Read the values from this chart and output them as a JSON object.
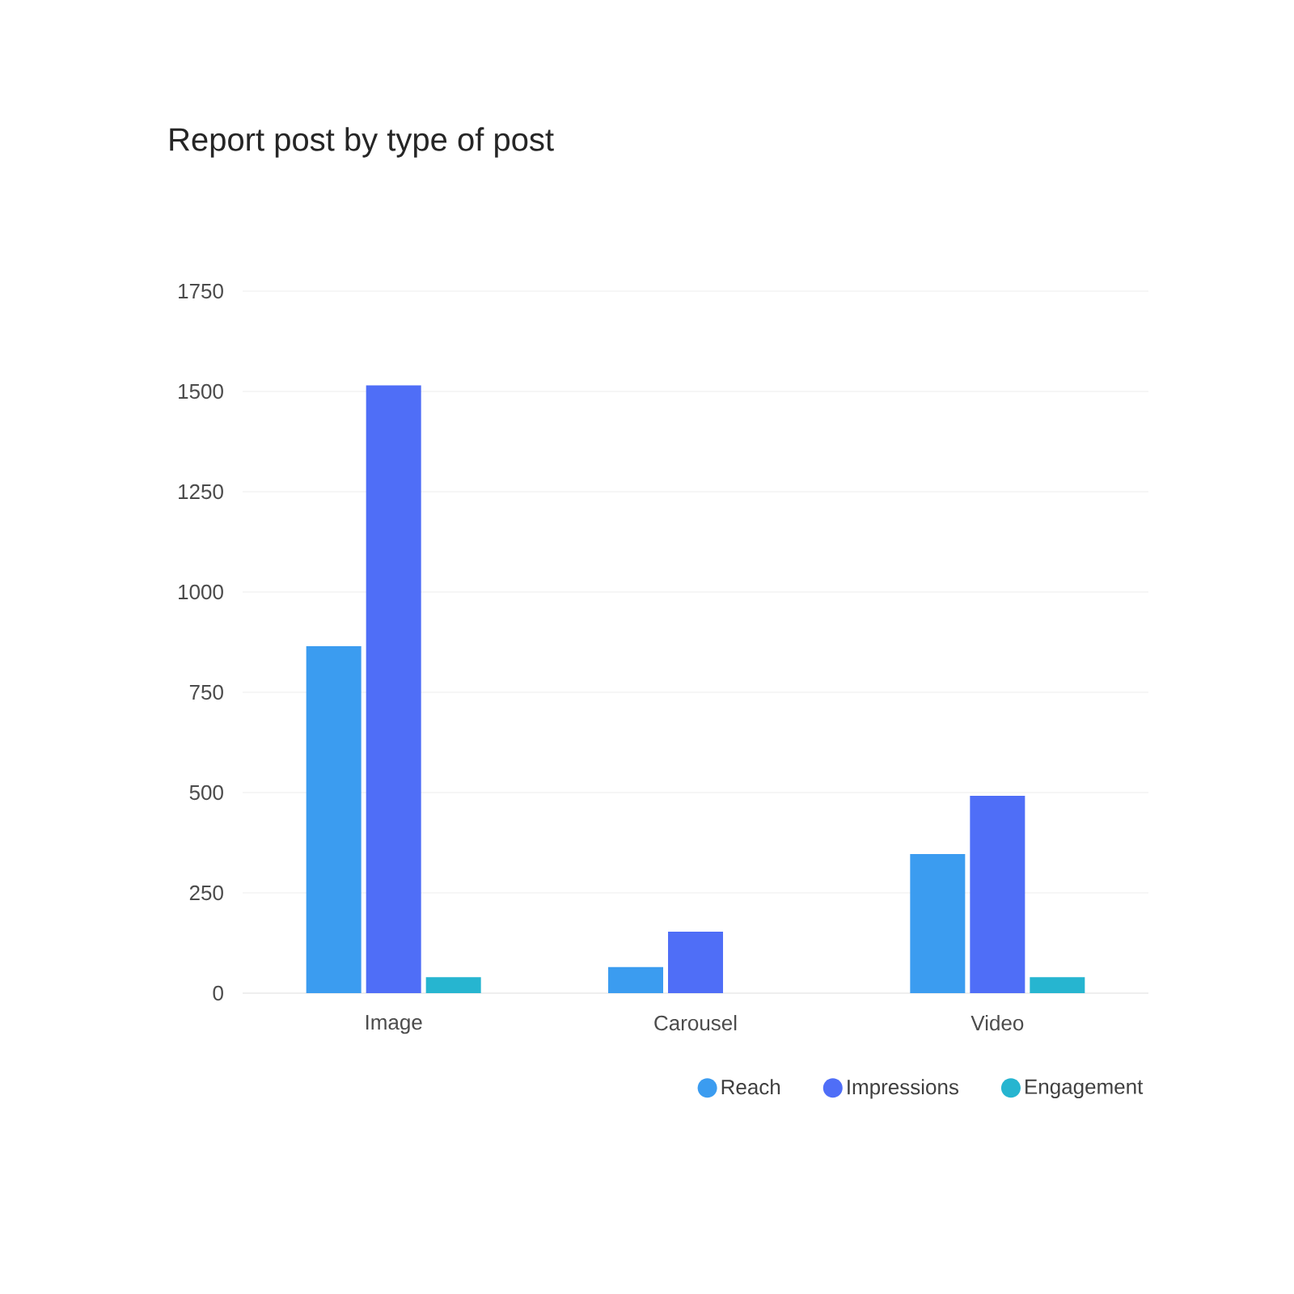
{
  "chart_data": {
    "type": "bar",
    "title": "Report post by type of post",
    "categories": [
      "Image",
      "Carousel",
      "Video"
    ],
    "series": [
      {
        "name": "Reach",
        "color": "#3b9cf0",
        "values": [
          865,
          65,
          347
        ]
      },
      {
        "name": "Impressions",
        "color": "#4f6ef7",
        "values": [
          1515,
          153,
          492
        ]
      },
      {
        "name": "Engagement",
        "color": "#26b5d0",
        "values": [
          40,
          0,
          40
        ]
      }
    ],
    "ylim": [
      0,
      1750
    ],
    "yticks": [
      0,
      250,
      500,
      750,
      1000,
      1250,
      1500,
      1750
    ],
    "grid": "y",
    "legend": "bottom",
    "marker": "circle"
  }
}
